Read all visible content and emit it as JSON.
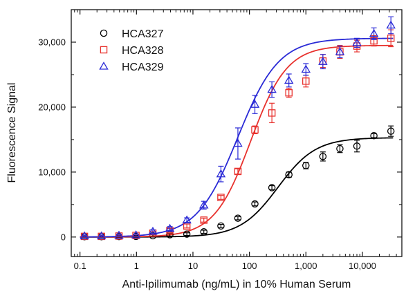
{
  "chart_data": {
    "type": "scatter",
    "title": "",
    "xlabel": "Anti-Ipilimumab (ng/mL) in 10% Human Serum",
    "ylabel": "Fluorescence Signal",
    "xscale": "log",
    "xlim": [
      0.07,
      50000
    ],
    "ylim": [
      -3000,
      35000
    ],
    "x_ticks": [
      0.1,
      1,
      10,
      100,
      1000,
      10000
    ],
    "x_tick_labels": [
      "0.1",
      "1",
      "10",
      "100",
      "1,000",
      "10,000"
    ],
    "y_ticks": [
      0,
      10000,
      20000,
      30000
    ],
    "y_tick_labels": [
      "0",
      "10,000",
      "20,000",
      "30,000"
    ],
    "grid": false,
    "legend_position": "top-left",
    "x": [
      0.12,
      0.24,
      0.49,
      0.98,
      1.95,
      3.9,
      7.8,
      15.6,
      31.3,
      62.5,
      125,
      250,
      500,
      1000,
      2000,
      4000,
      8000,
      16000,
      32000
    ],
    "series": [
      {
        "name": "HCA327",
        "marker": "circle",
        "color": "#000000",
        "values": [
          50,
          50,
          80,
          100,
          200,
          350,
          450,
          800,
          1700,
          2900,
          5100,
          7600,
          9600,
          11000,
          12400,
          13600,
          14000,
          15600,
          16300
        ],
        "errors": [
          150,
          150,
          150,
          150,
          150,
          200,
          200,
          250,
          250,
          250,
          300,
          300,
          400,
          500,
          700,
          600,
          900,
          300,
          800
        ],
        "fit": {
          "bottom": 0,
          "top": 15300,
          "ec50": 320,
          "hill": 1.3
        }
      },
      {
        "name": "HCA328",
        "marker": "square",
        "color": "#e8322e",
        "values": [
          100,
          100,
          150,
          250,
          600,
          1000,
          1700,
          2600,
          6100,
          10100,
          16500,
          19100,
          22200,
          24000,
          27100,
          28500,
          29400,
          30200,
          30600
        ],
        "errors": [
          150,
          150,
          150,
          150,
          250,
          300,
          300,
          300,
          300,
          400,
          600,
          1500,
          700,
          900,
          1000,
          1000,
          900,
          800,
          1300
        ],
        "fit": {
          "bottom": 0,
          "top": 29500,
          "ec50": 105,
          "hill": 1.35
        }
      },
      {
        "name": "HCA329",
        "marker": "triangle",
        "color": "#2a2ad6",
        "values": [
          150,
          150,
          250,
          300,
          850,
          1300,
          2600,
          4900,
          9700,
          14400,
          20400,
          22700,
          24100,
          25800,
          27000,
          28500,
          29900,
          31300,
          32600
        ],
        "errors": [
          150,
          150,
          150,
          150,
          250,
          300,
          350,
          600,
          1200,
          2400,
          1400,
          1200,
          1000,
          900,
          1100,
          900,
          700,
          900,
          1300
        ],
        "fit": {
          "bottom": 0,
          "top": 30600,
          "ec50": 62,
          "hill": 1.2
        }
      }
    ]
  }
}
